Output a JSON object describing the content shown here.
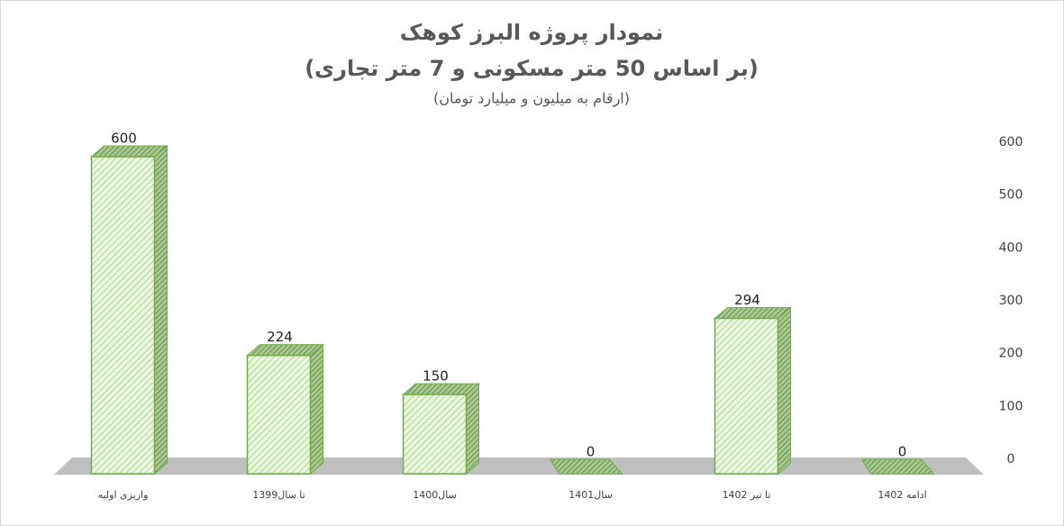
{
  "chart_data": {
    "type": "bar3d",
    "title": "نمودار پروژه البرز کوهک",
    "subtitle": "(بر اساس 50 متر مسکونی و 7 متر تجاری)",
    "note": "(ارقام به میلیون و میلیارد تومان)",
    "categories": [
      "واریزی اولیه",
      "تا سال1399",
      "سال1400",
      "سال1401",
      "تا تیر 1402",
      "ادامه 1402"
    ],
    "values": [
      600,
      224,
      150,
      0,
      294,
      0
    ],
    "color": "#70ad47",
    "ylim": [
      0,
      600
    ],
    "yticks": [
      0,
      100,
      200,
      300,
      400,
      500,
      600
    ],
    "axis_side": "right",
    "grid": false
  }
}
